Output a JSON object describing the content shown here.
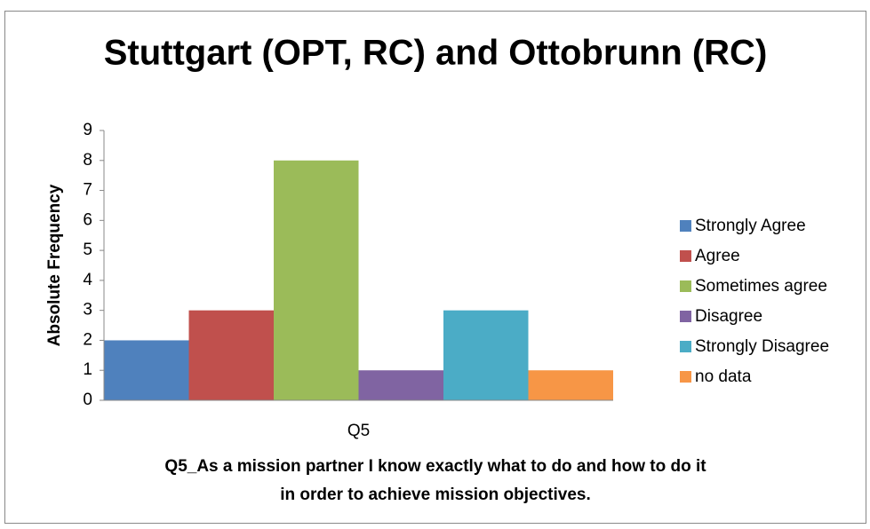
{
  "chart_data": {
    "type": "bar",
    "title": "Stuttgart (OPT, RC) and Ottobrunn (RC)",
    "ylabel": "Absolute Frequency",
    "xlabel": [
      "Q5_As a mission partner I know exactly what to do and how to do it",
      "in order to achieve mission objectives."
    ],
    "categories": [
      "Q5"
    ],
    "series": [
      {
        "name": "Strongly Agree",
        "color": "#4f81bd",
        "values": [
          2
        ]
      },
      {
        "name": "Agree",
        "color": "#c0504d",
        "values": [
          3
        ]
      },
      {
        "name": "Sometimes agree",
        "color": "#9bbb59",
        "values": [
          8
        ]
      },
      {
        "name": "Disagree",
        "color": "#8064a2",
        "values": [
          1
        ]
      },
      {
        "name": "Strongly Disagree",
        "color": "#4bacc6",
        "values": [
          3
        ]
      },
      {
        "name": "no data",
        "color": "#f79646",
        "values": [
          1
        ]
      }
    ],
    "ylim": [
      0,
      9
    ],
    "yticks": [
      0,
      1,
      2,
      3,
      4,
      5,
      6,
      7,
      8,
      9
    ],
    "grid": false,
    "legend": "right"
  }
}
